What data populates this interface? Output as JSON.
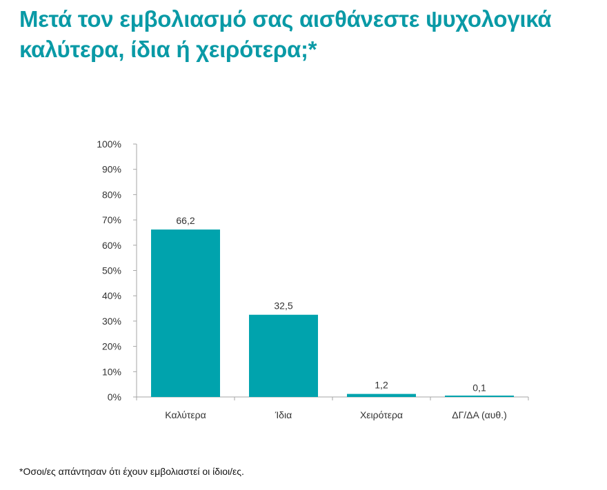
{
  "chart_data": {
    "type": "bar",
    "title": "Μετά τον εμβολιασμό σας αισθάνεστε ψυχολογικά καλύτερα, ίδια ή χειρότερα;*",
    "categories": [
      "Καλύτερα",
      "Ίδια",
      "Χειρότερα",
      "ΔΓ/ΔΑ (αυθ.)"
    ],
    "values": [
      66.2,
      32.5,
      1.2,
      0.1
    ],
    "data_labels": [
      "66,2",
      "32,5",
      "1,2",
      "0,1"
    ],
    "xlabel": "",
    "ylabel": "",
    "ylim": [
      0,
      100
    ],
    "yticks": [
      0,
      10,
      20,
      30,
      40,
      50,
      60,
      70,
      80,
      90,
      100
    ],
    "ytick_labels": [
      "0%",
      "10%",
      "20%",
      "30%",
      "40%",
      "50%",
      "60%",
      "70%",
      "80%",
      "90%",
      "100%"
    ],
    "grid": false,
    "legend": "none",
    "bar_color": "#00a3ad",
    "title_color": "#0a9aa6"
  },
  "footnote": "*Οσοι/ες απάντησαν ότι έχουν εμβολιαστεί οι ίδιοι/ες."
}
